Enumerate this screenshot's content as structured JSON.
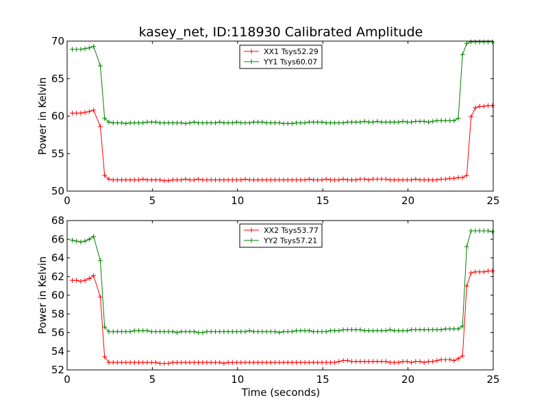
{
  "figure": {
    "title": "kasey_net, ID:118930 Calibrated Amplitude",
    "xlabel": "Time (seconds)"
  },
  "chart_data": [
    {
      "type": "line",
      "ylabel": "Power in Kelvin",
      "xlim": [
        0,
        25
      ],
      "ylim": [
        50,
        70
      ],
      "xticks": [
        0,
        5,
        10,
        15,
        20,
        25
      ],
      "yticks": [
        50,
        55,
        60,
        65,
        70
      ],
      "grid": false,
      "legend_position": "top-center",
      "series": [
        {
          "name": "XX1 Tsys52.29",
          "color": "#ff0000",
          "marker": "plus",
          "x": [
            0.3,
            0.55,
            0.8,
            1.05,
            1.3,
            1.55,
            1.95,
            2.2,
            2.45,
            2.7,
            2.95,
            3.2,
            3.45,
            3.7,
            3.95,
            4.2,
            4.45,
            4.7,
            4.95,
            5.2,
            5.45,
            5.7,
            5.95,
            6.2,
            6.45,
            6.7,
            6.95,
            7.2,
            7.45,
            7.7,
            7.95,
            8.2,
            8.45,
            8.7,
            8.95,
            9.2,
            9.45,
            9.7,
            9.95,
            10.2,
            10.45,
            10.7,
            10.95,
            11.2,
            11.45,
            11.7,
            11.95,
            12.2,
            12.45,
            12.7,
            12.95,
            13.2,
            13.45,
            13.7,
            13.95,
            14.2,
            14.45,
            14.7,
            14.95,
            15.2,
            15.45,
            15.7,
            15.95,
            16.2,
            16.45,
            16.7,
            16.95,
            17.2,
            17.45,
            17.7,
            17.95,
            18.2,
            18.45,
            18.7,
            18.95,
            19.2,
            19.45,
            19.7,
            19.95,
            20.2,
            20.45,
            20.7,
            20.95,
            21.2,
            21.45,
            21.7,
            21.95,
            22.2,
            22.45,
            22.7,
            22.95,
            23.2,
            23.45,
            23.7,
            23.95,
            24.2,
            24.45,
            24.7,
            24.95
          ],
          "y": [
            60.4,
            60.4,
            60.4,
            60.5,
            60.6,
            60.8,
            58.6,
            52.1,
            51.6,
            51.5,
            51.5,
            51.5,
            51.5,
            51.5,
            51.5,
            51.5,
            51.6,
            51.5,
            51.5,
            51.5,
            51.5,
            51.4,
            51.4,
            51.5,
            51.5,
            51.5,
            51.6,
            51.5,
            51.5,
            51.6,
            51.5,
            51.5,
            51.5,
            51.5,
            51.5,
            51.5,
            51.5,
            51.5,
            51.5,
            51.5,
            51.6,
            51.5,
            51.5,
            51.5,
            51.5,
            51.5,
            51.5,
            51.5,
            51.5,
            51.5,
            51.5,
            51.5,
            51.5,
            51.5,
            51.5,
            51.6,
            51.5,
            51.5,
            51.5,
            51.6,
            51.5,
            51.5,
            51.5,
            51.6,
            51.5,
            51.5,
            51.5,
            51.6,
            51.6,
            51.5,
            51.6,
            51.6,
            51.6,
            51.6,
            51.5,
            51.5,
            51.5,
            51.5,
            51.5,
            51.5,
            51.6,
            51.5,
            51.5,
            51.5,
            51.5,
            51.5,
            51.6,
            51.6,
            51.7,
            51.7,
            51.8,
            51.8,
            52.1,
            59.9,
            61.1,
            61.3,
            61.3,
            61.4,
            61.4
          ]
        },
        {
          "name": "YY1 Tsys60.07",
          "color": "#008000",
          "marker": "plus",
          "x": [
            0.3,
            0.55,
            0.8,
            1.05,
            1.3,
            1.55,
            1.95,
            2.2,
            2.45,
            2.7,
            2.95,
            3.2,
            3.45,
            3.7,
            3.95,
            4.2,
            4.45,
            4.7,
            4.95,
            5.2,
            5.45,
            5.7,
            5.95,
            6.2,
            6.45,
            6.7,
            6.95,
            7.2,
            7.45,
            7.7,
            7.95,
            8.2,
            8.45,
            8.7,
            8.95,
            9.2,
            9.45,
            9.7,
            9.95,
            10.2,
            10.45,
            10.7,
            10.95,
            11.2,
            11.45,
            11.7,
            11.95,
            12.2,
            12.45,
            12.7,
            12.95,
            13.2,
            13.45,
            13.7,
            13.95,
            14.2,
            14.45,
            14.7,
            14.95,
            15.2,
            15.45,
            15.7,
            15.95,
            16.2,
            16.45,
            16.7,
            16.95,
            17.2,
            17.45,
            17.7,
            17.95,
            18.2,
            18.45,
            18.7,
            18.95,
            19.2,
            19.45,
            19.7,
            19.95,
            20.2,
            20.45,
            20.7,
            20.95,
            21.2,
            21.45,
            21.7,
            21.95,
            22.2,
            22.45,
            22.7,
            22.95,
            23.2,
            23.45,
            23.7,
            23.95,
            24.2,
            24.45,
            24.7,
            24.95
          ],
          "y": [
            68.9,
            68.9,
            68.9,
            69.0,
            69.1,
            69.3,
            66.7,
            59.7,
            59.2,
            59.1,
            59.1,
            59.1,
            59.0,
            59.1,
            59.1,
            59.1,
            59.1,
            59.2,
            59.2,
            59.2,
            59.1,
            59.1,
            59.1,
            59.1,
            59.1,
            59.1,
            59.0,
            59.1,
            59.2,
            59.1,
            59.1,
            59.1,
            59.1,
            59.1,
            59.2,
            59.1,
            59.1,
            59.1,
            59.2,
            59.1,
            59.1,
            59.1,
            59.2,
            59.2,
            59.2,
            59.1,
            59.1,
            59.1,
            59.1,
            59.0,
            59.0,
            59.0,
            59.1,
            59.1,
            59.1,
            59.2,
            59.2,
            59.2,
            59.2,
            59.1,
            59.1,
            59.1,
            59.1,
            59.1,
            59.2,
            59.2,
            59.2,
            59.2,
            59.3,
            59.2,
            59.2,
            59.3,
            59.2,
            59.2,
            59.2,
            59.2,
            59.2,
            59.3,
            59.2,
            59.2,
            59.3,
            59.3,
            59.3,
            59.2,
            59.3,
            59.4,
            59.4,
            59.4,
            59.4,
            59.4,
            59.7,
            68.2,
            69.7,
            69.9,
            69.9,
            69.9,
            69.9,
            69.9,
            69.9
          ]
        }
      ]
    },
    {
      "type": "line",
      "ylabel": "Power in Kelvin",
      "xlabel": "Time (seconds)",
      "xlim": [
        0,
        25
      ],
      "ylim": [
        52,
        68
      ],
      "xticks": [
        0,
        5,
        10,
        15,
        20,
        25
      ],
      "yticks": [
        52,
        54,
        56,
        58,
        60,
        62,
        64,
        66,
        68
      ],
      "grid": false,
      "legend_position": "top-center",
      "series": [
        {
          "name": "XX2 Tsys53.77",
          "color": "#ff0000",
          "marker": "plus",
          "x": [
            0.3,
            0.55,
            0.8,
            1.05,
            1.3,
            1.55,
            1.95,
            2.2,
            2.45,
            2.7,
            2.95,
            3.2,
            3.45,
            3.7,
            3.95,
            4.2,
            4.45,
            4.7,
            4.95,
            5.2,
            5.45,
            5.7,
            5.95,
            6.2,
            6.45,
            6.7,
            6.95,
            7.2,
            7.45,
            7.7,
            7.95,
            8.2,
            8.45,
            8.7,
            8.95,
            9.2,
            9.45,
            9.7,
            9.95,
            10.2,
            10.45,
            10.7,
            10.95,
            11.2,
            11.45,
            11.7,
            11.95,
            12.2,
            12.45,
            12.7,
            12.95,
            13.2,
            13.45,
            13.7,
            13.95,
            14.2,
            14.45,
            14.7,
            14.95,
            15.2,
            15.45,
            15.7,
            15.95,
            16.2,
            16.45,
            16.7,
            16.95,
            17.2,
            17.45,
            17.7,
            17.95,
            18.2,
            18.45,
            18.7,
            18.95,
            19.2,
            19.45,
            19.7,
            19.95,
            20.2,
            20.45,
            20.7,
            20.95,
            21.2,
            21.45,
            21.7,
            21.95,
            22.2,
            22.45,
            22.7,
            22.95,
            23.2,
            23.45,
            23.7,
            23.95,
            24.2,
            24.45,
            24.7,
            24.95
          ],
          "y": [
            61.6,
            61.6,
            61.5,
            61.6,
            61.8,
            62.1,
            59.8,
            53.4,
            52.8,
            52.8,
            52.8,
            52.8,
            52.8,
            52.8,
            52.8,
            52.8,
            52.8,
            52.8,
            52.8,
            52.8,
            52.7,
            52.7,
            52.7,
            52.8,
            52.8,
            52.8,
            52.8,
            52.8,
            52.8,
            52.8,
            52.8,
            52.8,
            52.8,
            52.8,
            52.8,
            52.7,
            52.8,
            52.8,
            52.8,
            52.8,
            52.8,
            52.8,
            52.8,
            52.8,
            52.8,
            52.8,
            52.8,
            52.8,
            52.8,
            52.8,
            52.8,
            52.8,
            52.8,
            52.8,
            52.8,
            52.8,
            52.8,
            52.8,
            52.8,
            52.8,
            52.8,
            52.8,
            52.9,
            53.0,
            53.0,
            52.9,
            52.9,
            52.9,
            52.9,
            52.9,
            52.9,
            52.9,
            52.9,
            52.9,
            52.8,
            52.8,
            52.8,
            52.9,
            52.9,
            52.8,
            52.9,
            52.9,
            52.8,
            52.9,
            52.9,
            53.0,
            53.1,
            53.1,
            53.1,
            53.0,
            53.2,
            53.5,
            61.0,
            62.4,
            62.5,
            62.5,
            62.5,
            62.6,
            62.6
          ]
        },
        {
          "name": "YY2 Tsys57.21",
          "color": "#008000",
          "marker": "plus",
          "x": [
            0.3,
            0.55,
            0.8,
            1.05,
            1.3,
            1.55,
            1.95,
            2.2,
            2.45,
            2.7,
            2.95,
            3.2,
            3.45,
            3.7,
            3.95,
            4.2,
            4.45,
            4.7,
            4.95,
            5.2,
            5.45,
            5.7,
            5.95,
            6.2,
            6.45,
            6.7,
            6.95,
            7.2,
            7.45,
            7.7,
            7.95,
            8.2,
            8.45,
            8.7,
            8.95,
            9.2,
            9.45,
            9.7,
            9.95,
            10.2,
            10.45,
            10.7,
            10.95,
            11.2,
            11.45,
            11.7,
            11.95,
            12.2,
            12.45,
            12.7,
            12.95,
            13.2,
            13.45,
            13.7,
            13.95,
            14.2,
            14.45,
            14.7,
            14.95,
            15.2,
            15.45,
            15.7,
            15.95,
            16.2,
            16.45,
            16.7,
            16.95,
            17.2,
            17.45,
            17.7,
            17.95,
            18.2,
            18.45,
            18.7,
            18.95,
            19.2,
            19.45,
            19.7,
            19.95,
            20.2,
            20.45,
            20.7,
            20.95,
            21.2,
            21.45,
            21.7,
            21.95,
            22.2,
            22.45,
            22.7,
            22.95,
            23.2,
            23.45,
            23.7,
            23.95,
            24.2,
            24.45,
            24.7,
            24.95
          ],
          "y": [
            65.9,
            65.8,
            65.7,
            65.8,
            66.0,
            66.3,
            63.7,
            56.6,
            56.1,
            56.1,
            56.1,
            56.1,
            56.1,
            56.1,
            56.2,
            56.2,
            56.2,
            56.2,
            56.1,
            56.1,
            56.1,
            56.1,
            56.1,
            56.1,
            56.0,
            56.1,
            56.1,
            56.1,
            56.1,
            56.0,
            56.0,
            56.1,
            56.1,
            56.1,
            56.1,
            56.1,
            56.1,
            56.1,
            56.1,
            56.1,
            56.1,
            56.2,
            56.1,
            56.1,
            56.1,
            56.1,
            56.1,
            56.1,
            56.0,
            56.1,
            56.1,
            56.1,
            56.2,
            56.2,
            56.2,
            56.2,
            56.1,
            56.1,
            56.1,
            56.1,
            56.2,
            56.2,
            56.2,
            56.3,
            56.3,
            56.3,
            56.3,
            56.3,
            56.2,
            56.2,
            56.2,
            56.2,
            56.2,
            56.2,
            56.3,
            56.2,
            56.2,
            56.2,
            56.2,
            56.3,
            56.3,
            56.3,
            56.3,
            56.3,
            56.3,
            56.3,
            56.3,
            56.4,
            56.4,
            56.4,
            56.4,
            56.7,
            65.2,
            66.9,
            66.9,
            66.9,
            66.9,
            66.9,
            66.8
          ]
        }
      ]
    }
  ]
}
